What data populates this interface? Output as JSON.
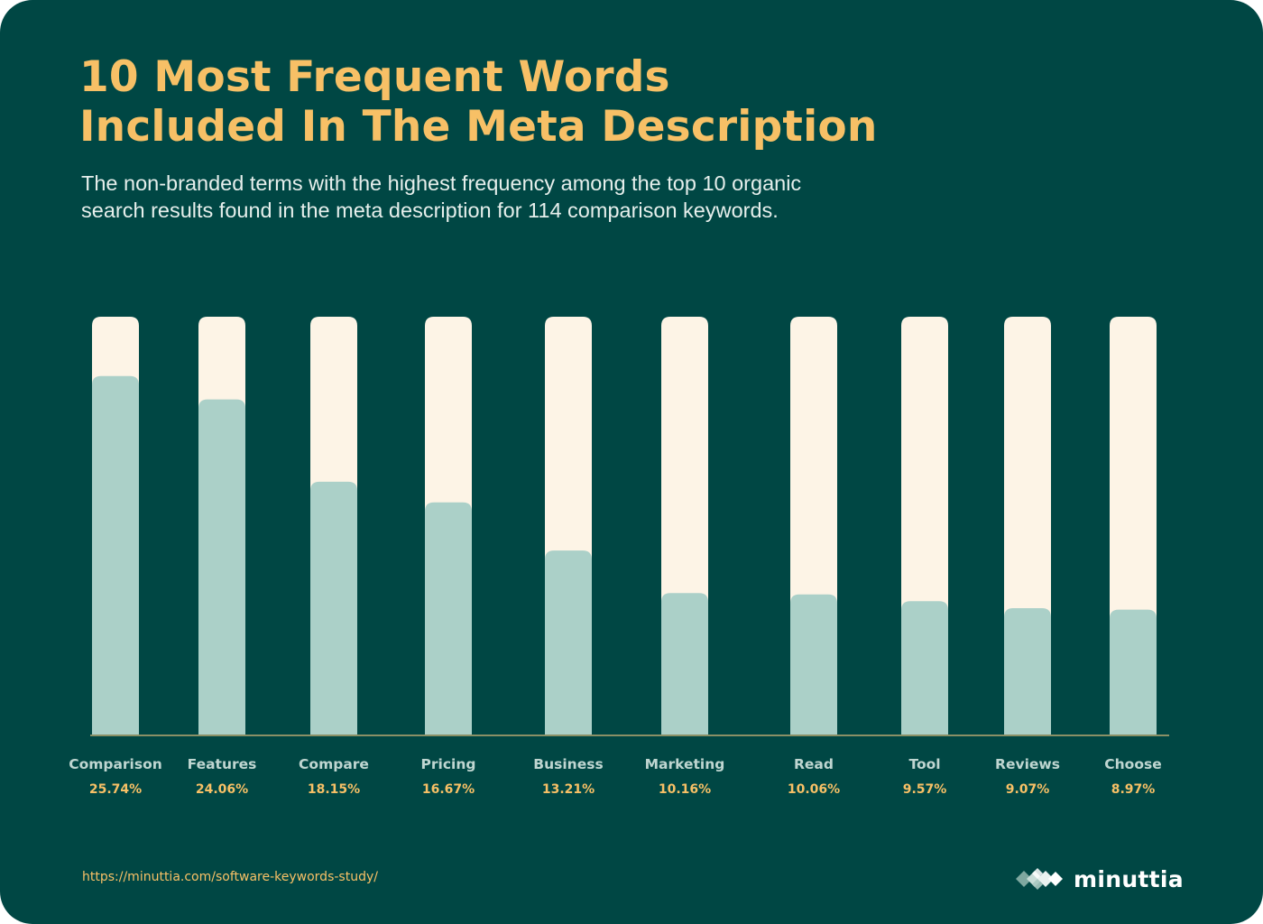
{
  "theme": {
    "background": "#004744",
    "track": "#fdf4e6",
    "bar": "#abd0c8",
    "axis": "#b8a872",
    "accent": "#f7c066",
    "label": "#bfd6d1"
  },
  "header": {
    "title_line1": "10 Most Frequent Words",
    "title_line2": "Included In The Meta Description",
    "subtitle_line1": "The non-branded terms with the highest frequency among the top 10 organic",
    "subtitle_line2": "search results found in the meta description for 114 comparison keywords."
  },
  "chart_data": {
    "type": "bar",
    "categories": [
      "Comparison",
      "Features",
      "Compare",
      "Pricing",
      "Business",
      "Marketing",
      "Read",
      "Tool",
      "Reviews",
      "Choose"
    ],
    "values": [
      25.74,
      24.06,
      18.15,
      16.67,
      13.21,
      10.16,
      10.06,
      9.57,
      9.07,
      8.97
    ],
    "value_labels": [
      "25.74%",
      "24.06%",
      "18.15%",
      "16.67%",
      "13.21%",
      "10.16%",
      "10.06%",
      "9.57%",
      "9.07%",
      "8.97%"
    ],
    "title": "10 Most Frequent Words Included In The Meta Description",
    "subtitle": "The non-branded terms with the highest frequency among the top 10 organic search results found in the meta description for 114 comparison keywords.",
    "xlabel": "",
    "ylabel": "",
    "ylim": [
      0,
      30
    ],
    "grid": false,
    "legend": "none"
  },
  "footer": {
    "source_url": "https://minuttia.com/software-keywords-study/",
    "brand_name": "minuttia",
    "brand_icon": "diamond-cluster-icon"
  }
}
